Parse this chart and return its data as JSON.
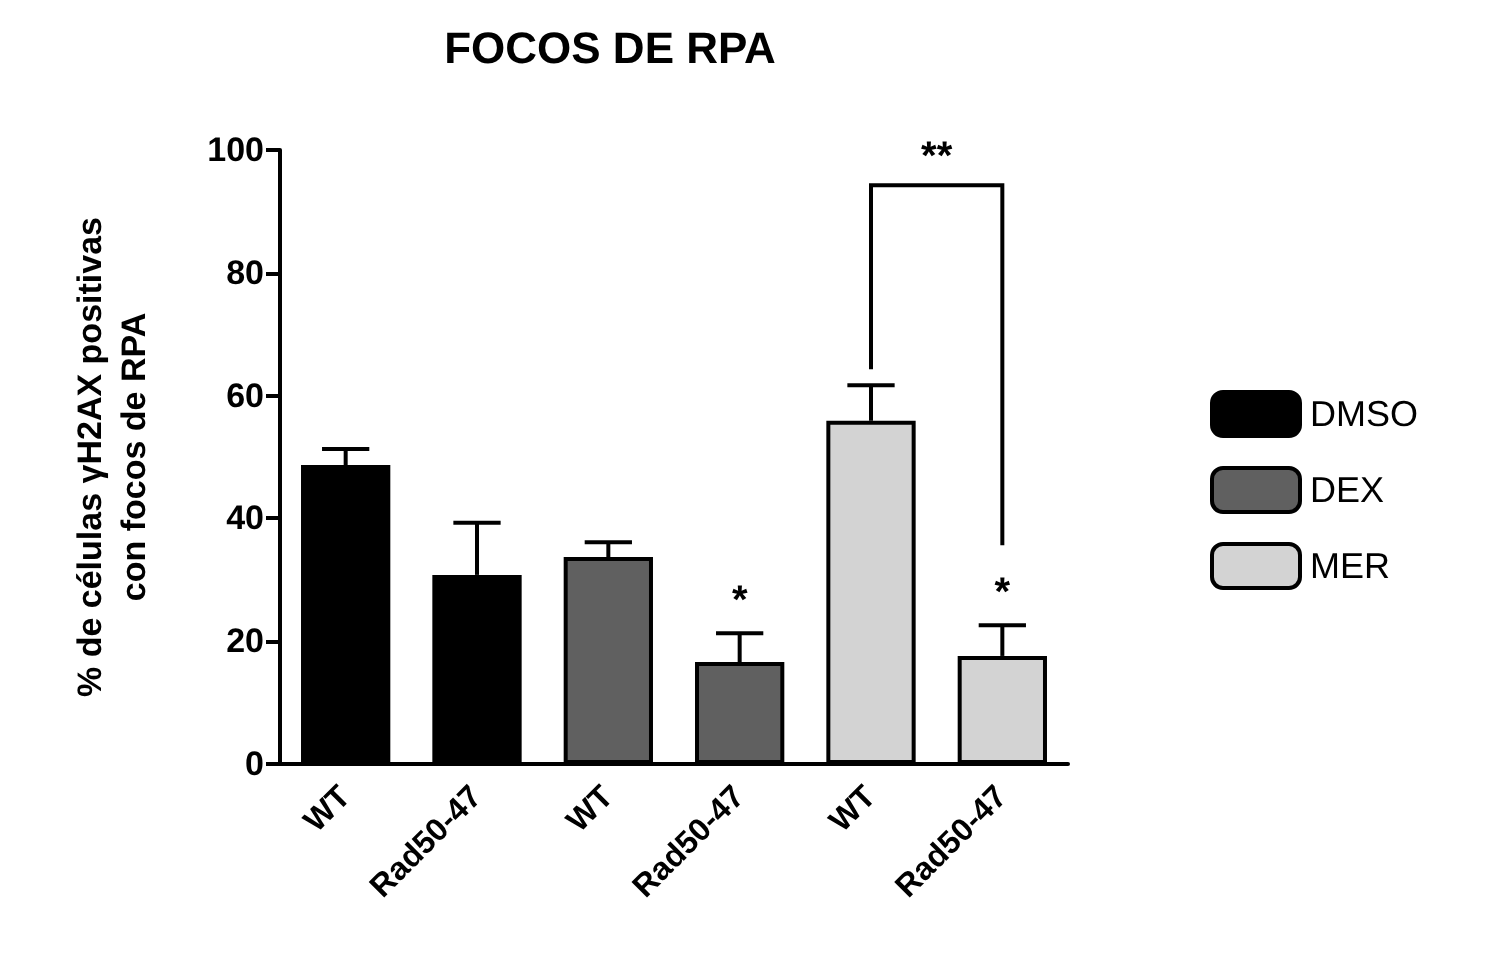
{
  "chart_data": {
    "type": "bar",
    "title": "FOCOS DE RPA",
    "ylabel": "% de células γH2AX positivas\ncon focos de RPA",
    "categories": [
      "WT",
      "Rad50-47",
      "WT",
      "Rad50-47",
      "WT",
      "Rad50-47"
    ],
    "series": [
      {
        "name": "DMSO",
        "color": "#000000",
        "values": [
          48.7,
          30.8,
          null,
          null,
          null,
          null
        ],
        "errors": [
          [
            48.7,
            51.3
          ],
          [
            30.8,
            39.3
          ],
          null,
          null,
          null,
          null
        ]
      },
      {
        "name": "DEX",
        "color": "#606060",
        "values": [
          null,
          null,
          33.7,
          16.6,
          null,
          null
        ],
        "errors": [
          null,
          null,
          [
            33.7,
            36.1
          ],
          [
            16.6,
            21.3
          ],
          null,
          null
        ],
        "value_labels": [
          null,
          null,
          null,
          "*",
          null,
          null
        ]
      },
      {
        "name": "MER",
        "color": "#d3d3d3",
        "values": [
          null,
          null,
          null,
          null,
          55.9,
          17.6
        ],
        "errors": [
          null,
          null,
          null,
          null,
          [
            55.9,
            61.7
          ],
          [
            17.6,
            22.6
          ]
        ],
        "value_labels": [
          null,
          null,
          null,
          null,
          null,
          "*"
        ]
      }
    ],
    "annotations": [
      "**"
    ],
    "ylim": [
      0,
      100
    ],
    "yticks": [
      0,
      20,
      40,
      60,
      80,
      100
    ],
    "grid": false,
    "legend": "right"
  }
}
